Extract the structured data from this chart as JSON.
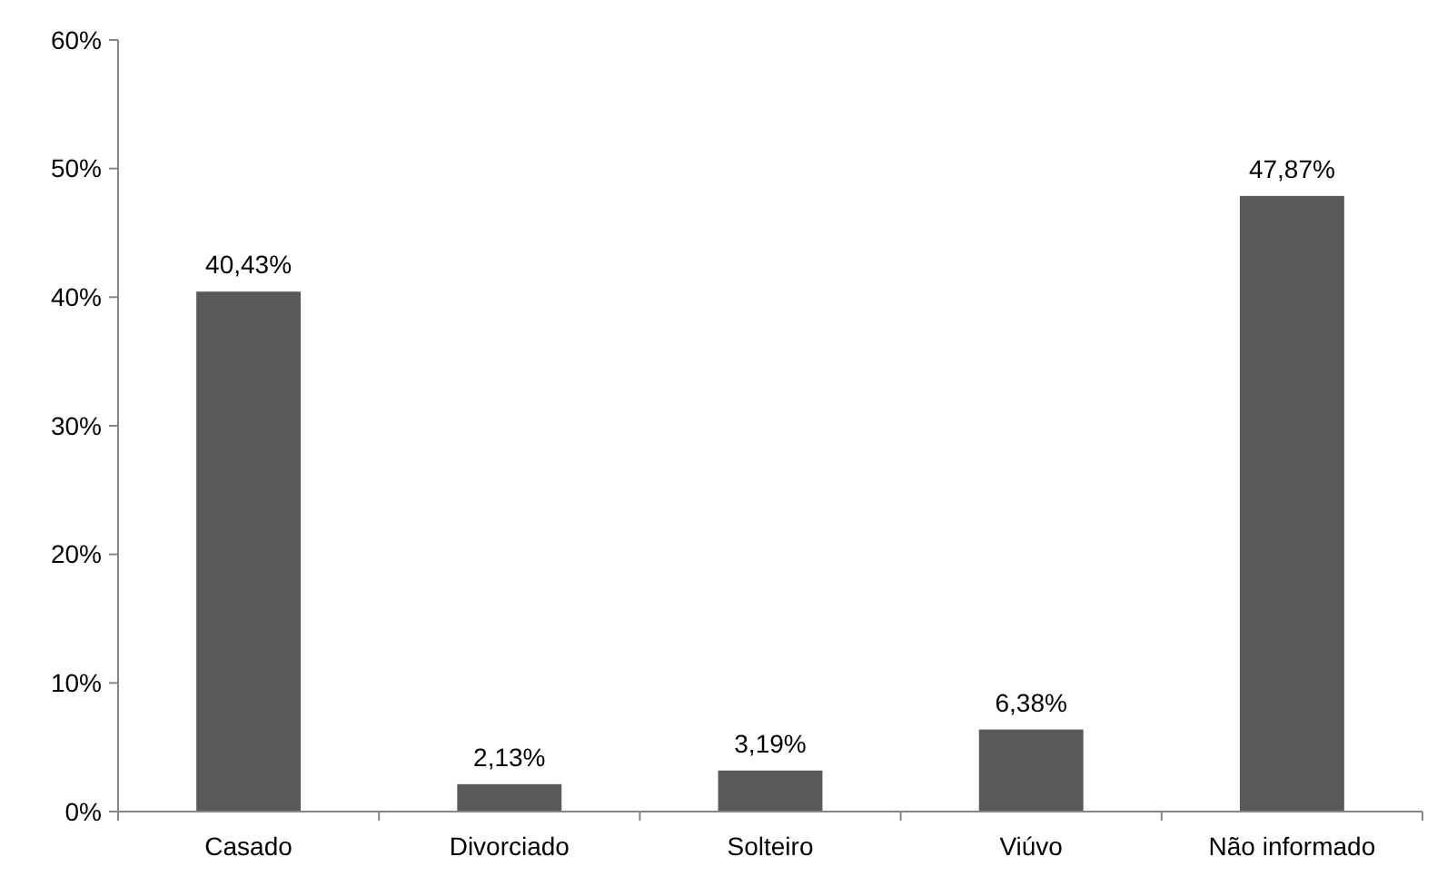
{
  "chart_data": {
    "type": "bar",
    "categories": [
      "Casado",
      "Divorciado",
      "Solteiro",
      "Viúvo",
      "Não informado"
    ],
    "values": [
      40.43,
      2.13,
      3.19,
      6.38,
      47.87
    ],
    "value_labels": [
      "40,43%",
      "2,13%",
      "3,19%",
      "6,38%",
      "47,87%"
    ],
    "color": "#595959",
    "ylim": [
      0,
      60
    ],
    "yticks": [
      {
        "value": 0,
        "label": "0%"
      },
      {
        "value": 10,
        "label": "10%"
      },
      {
        "value": 20,
        "label": "20%"
      },
      {
        "value": 30,
        "label": "30%"
      },
      {
        "value": 40,
        "label": "40%"
      },
      {
        "value": 50,
        "label": "50%"
      },
      {
        "value": 60,
        "label": "60%"
      }
    ],
    "grid": false
  }
}
